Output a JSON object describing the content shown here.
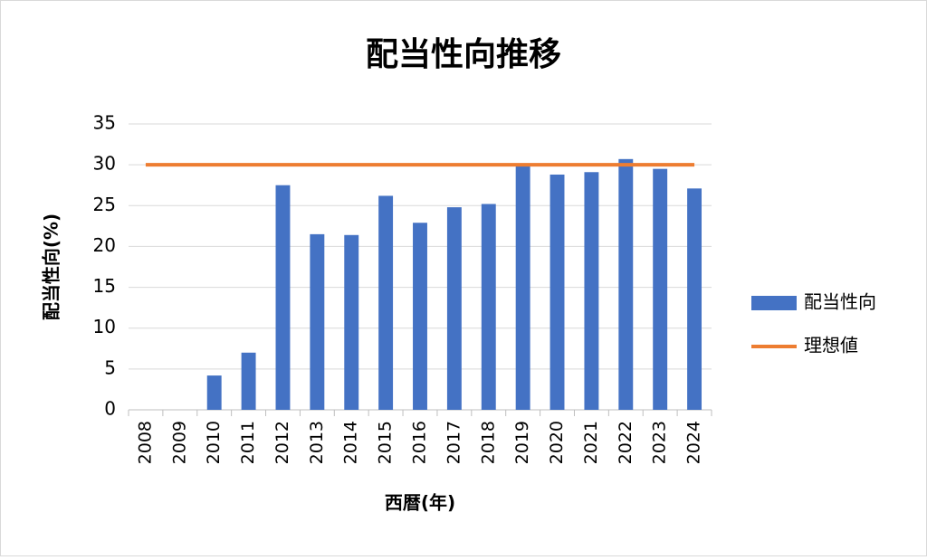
{
  "chart_data": {
    "type": "bar",
    "title": "配当性向推移",
    "x_label": "西暦(年)",
    "y_label": "配当性向(%)",
    "categories": [
      "2008",
      "2009",
      "2010",
      "2011",
      "2012",
      "2013",
      "2014",
      "2015",
      "2016",
      "2017",
      "2018",
      "2019",
      "2020",
      "2021",
      "2022",
      "2023",
      "2024"
    ],
    "series": [
      {
        "name": "配当性向",
        "type": "bar",
        "color": "#4472c4",
        "values": [
          0,
          0,
          4.2,
          7.0,
          27.5,
          21.5,
          21.4,
          26.2,
          22.9,
          24.8,
          25.2,
          30.0,
          28.8,
          29.1,
          30.7,
          29.5,
          27.1
        ]
      },
      {
        "name": "理想値",
        "type": "line",
        "color": "#ed7d31",
        "values": [
          30,
          30,
          30,
          30,
          30,
          30,
          30,
          30,
          30,
          30,
          30,
          30,
          30,
          30,
          30,
          30,
          30
        ]
      }
    ],
    "ylim": [
      0,
      35
    ],
    "yticks": [
      0,
      5,
      10,
      15,
      20,
      25,
      30,
      35
    ],
    "grid": true,
    "legend": "right"
  }
}
